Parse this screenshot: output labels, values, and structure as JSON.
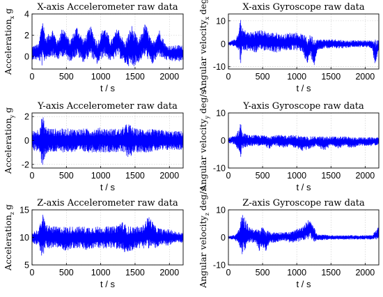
{
  "chart_data": [
    {
      "type": "line",
      "title": "X-axis Accelerometer raw data",
      "ylabel": "Acceleration",
      "ylabel_sub": "x",
      "yunit": "g",
      "xlabel": "t / s",
      "xlim": [
        0,
        2200
      ],
      "ylim": [
        -1.2,
        4
      ],
      "xticks": [
        0,
        500,
        1000,
        1500,
        2000
      ],
      "yticks": [
        0,
        2,
        4
      ],
      "grid": true,
      "color": "#0000ff",
      "series": [
        {
          "x": [
            0,
            100,
            150,
            200,
            300,
            370,
            450,
            550,
            650,
            750,
            850,
            950,
            1050,
            1150,
            1250,
            1350,
            1450,
            1550,
            1650,
            1750,
            1850,
            1950,
            2050,
            2150,
            2200
          ],
          "max": [
            1.0,
            1.2,
            3.9,
            1.8,
            2.6,
            1.5,
            2.9,
            1.5,
            2.9,
            1.6,
            2.9,
            1.4,
            2.9,
            1.5,
            2.8,
            1.3,
            3.0,
            1.5,
            3.2,
            1.3,
            2.6,
            1.1,
            1.0,
            1.1,
            1.0
          ],
          "min": [
            -0.3,
            -0.4,
            -1.0,
            -0.3,
            0.0,
            -0.4,
            0.0,
            -0.5,
            0.0,
            -0.6,
            0.0,
            -0.8,
            0.0,
            -0.5,
            0.0,
            -0.7,
            -1.1,
            -0.6,
            0.0,
            -0.8,
            0.0,
            -0.4,
            -0.5,
            -0.5,
            -0.4
          ]
        }
      ]
    },
    {
      "type": "line",
      "title": "X-axis Gyroscope raw data",
      "ylabel": "Angular velocity",
      "ylabel_sub": "x",
      "yunit": "deg/s",
      "xlabel": "t / s",
      "xlim": [
        0,
        2200
      ],
      "ylim": [
        -11,
        13
      ],
      "xticks": [
        0,
        500,
        1000,
        1500,
        2000
      ],
      "yticks": [
        -10,
        0,
        10
      ],
      "grid": true,
      "color": "#0000ff",
      "series": [
        {
          "x": [
            0,
            100,
            150,
            180,
            200,
            300,
            400,
            500,
            600,
            700,
            800,
            900,
            1000,
            1100,
            1150,
            1200,
            1250,
            1300,
            1400,
            1500,
            1600,
            1700,
            1800,
            1900,
            2000,
            2100,
            2150,
            2200
          ],
          "max": [
            1,
            2,
            5,
            12,
            7,
            5,
            6,
            6,
            5,
            5,
            4,
            5,
            5,
            4,
            3,
            4,
            3,
            2,
            2,
            2,
            2,
            1.5,
            1.5,
            1.5,
            1.5,
            1.5,
            2,
            1.5
          ],
          "min": [
            -1,
            -1,
            -3,
            -9,
            -4,
            -3,
            -4,
            -3,
            -3,
            -4,
            -3,
            -3,
            -3,
            -4,
            -10,
            -5,
            -10,
            -3,
            -2,
            -2,
            -2,
            -2,
            -1.5,
            -1.5,
            -1.5,
            -2,
            -10,
            -2
          ]
        }
      ]
    },
    {
      "type": "line",
      "title": "Y-axis Accelerometer raw data",
      "ylabel": "Acceleration",
      "ylabel_sub": "y",
      "yunit": "g",
      "xlabel": "t / s",
      "xlim": [
        0,
        2200
      ],
      "ylim": [
        -2.3,
        2.3
      ],
      "xticks": [
        0,
        500,
        1000,
        1500,
        2000
      ],
      "yticks": [
        -2,
        0,
        2
      ],
      "grid": true,
      "color": "#0000ff",
      "series": [
        {
          "x": [
            0,
            100,
            150,
            200,
            300,
            400,
            500,
            600,
            700,
            800,
            900,
            1000,
            1100,
            1200,
            1300,
            1400,
            1450,
            1500,
            1600,
            1700,
            1800,
            1900,
            2000,
            2100,
            2200
          ],
          "max": [
            0.8,
            1.0,
            2.2,
            1.2,
            1.0,
            1.0,
            1.0,
            1.0,
            1.0,
            1.0,
            1.0,
            1.1,
            1.0,
            1.0,
            1.0,
            1.5,
            1.2,
            1.0,
            1.0,
            1.0,
            0.9,
            0.9,
            0.8,
            0.8,
            0.8
          ],
          "min": [
            -0.8,
            -1.0,
            -2.2,
            -1.2,
            -1.0,
            -1.0,
            -1.0,
            -1.0,
            -1.0,
            -1.0,
            -1.0,
            -1.0,
            -1.0,
            -1.0,
            -1.0,
            -1.4,
            -1.3,
            -1.0,
            -1.0,
            -1.0,
            -0.9,
            -0.9,
            -0.8,
            -0.8,
            -0.8
          ]
        }
      ]
    },
    {
      "type": "line",
      "title": "Y-axis Gyroscope raw data",
      "ylabel": "Angular velocity",
      "ylabel_sub": "y",
      "yunit": "deg/s",
      "xlabel": "t / s",
      "xlim": [
        0,
        2200
      ],
      "ylim": [
        -10,
        10
      ],
      "xticks": [
        0,
        500,
        1000,
        1500,
        2000
      ],
      "yticks": [
        -10,
        0,
        10
      ],
      "grid": true,
      "color": "#0000ff",
      "series": [
        {
          "x": [
            0,
            100,
            150,
            180,
            200,
            300,
            400,
            500,
            600,
            700,
            800,
            900,
            1000,
            1100,
            1200,
            1300,
            1400,
            1500,
            1600,
            1700,
            1800,
            1900,
            2000,
            2100,
            2200
          ],
          "max": [
            1,
            2,
            4,
            8,
            3,
            2,
            2,
            2,
            2,
            2,
            2,
            2,
            2,
            1.5,
            1.5,
            1.5,
            1.5,
            1.5,
            1.5,
            1.5,
            1.2,
            1.2,
            1.2,
            1.2,
            1.2
          ],
          "min": [
            -1,
            -1.5,
            -4,
            -9,
            -3,
            -2,
            -2,
            -2,
            -3,
            -2,
            -3,
            -2,
            -3,
            -4,
            -3,
            -2,
            -4,
            -2,
            -3,
            -2,
            -3,
            -2,
            -2,
            -2,
            -1.5
          ]
        }
      ]
    },
    {
      "type": "line",
      "title": "Z-axis Accelerometer raw data",
      "ylabel": "Acceleration",
      "ylabel_sub": "z",
      "yunit": "g",
      "xlabel": "t / s",
      "xlim": [
        0,
        2200
      ],
      "ylim": [
        5,
        15
      ],
      "xticks": [
        0,
        500,
        1000,
        1500,
        2000
      ],
      "yticks": [
        5,
        10,
        15
      ],
      "grid": true,
      "color": "#0000ff",
      "series": [
        {
          "x": [
            0,
            100,
            150,
            200,
            300,
            400,
            500,
            600,
            700,
            800,
            900,
            1000,
            1100,
            1200,
            1300,
            1400,
            1500,
            1600,
            1700,
            1800,
            1900,
            2000,
            2100,
            2200
          ],
          "max": [
            11,
            11.5,
            14.5,
            12.5,
            12,
            12,
            12,
            12,
            12,
            12,
            12,
            12,
            12,
            12,
            13,
            12,
            12,
            12,
            14,
            12,
            11.5,
            11.5,
            11,
            11
          ],
          "min": [
            9,
            8.5,
            6,
            8,
            8,
            8,
            7.5,
            8,
            8,
            7.5,
            8,
            8,
            8,
            8,
            7.5,
            7,
            8,
            8,
            8,
            8,
            8.5,
            8.5,
            9,
            9
          ]
        }
      ]
    },
    {
      "type": "line",
      "title": "Z-axis Gyroscope raw data",
      "ylabel": "Angular velocity",
      "ylabel_sub": "z",
      "yunit": "deg/s",
      "xlabel": "t / s",
      "xlim": [
        0,
        2200
      ],
      "ylim": [
        -10,
        10
      ],
      "xticks": [
        0,
        500,
        1000,
        1500,
        2000
      ],
      "yticks": [
        -10,
        0,
        10
      ],
      "grid": true,
      "color": "#0000ff",
      "series": [
        {
          "x": [
            0,
            100,
            150,
            200,
            300,
            400,
            450,
            500,
            550,
            600,
            700,
            800,
            900,
            1000,
            1100,
            1150,
            1200,
            1250,
            1300,
            1400,
            1500,
            1600,
            1700,
            1800,
            1900,
            2000,
            2100,
            2200
          ],
          "max": [
            0.5,
            1,
            3,
            9,
            4,
            3,
            3,
            4,
            3,
            2,
            2,
            2,
            2,
            3,
            4,
            6,
            7,
            4,
            1,
            1,
            0.8,
            0.8,
            0.8,
            0.8,
            0.8,
            0.8,
            0.8,
            4
          ],
          "min": [
            -0.5,
            -1,
            -3,
            -7,
            -2,
            -2,
            -5,
            -4,
            -5,
            -2,
            -2,
            -1,
            -2,
            -2,
            -1,
            -1,
            0,
            -2,
            -1,
            -1,
            -0.8,
            -0.8,
            -0.8,
            -0.8,
            -0.8,
            -0.8,
            -0.8,
            -0.8
          ]
        }
      ]
    }
  ]
}
